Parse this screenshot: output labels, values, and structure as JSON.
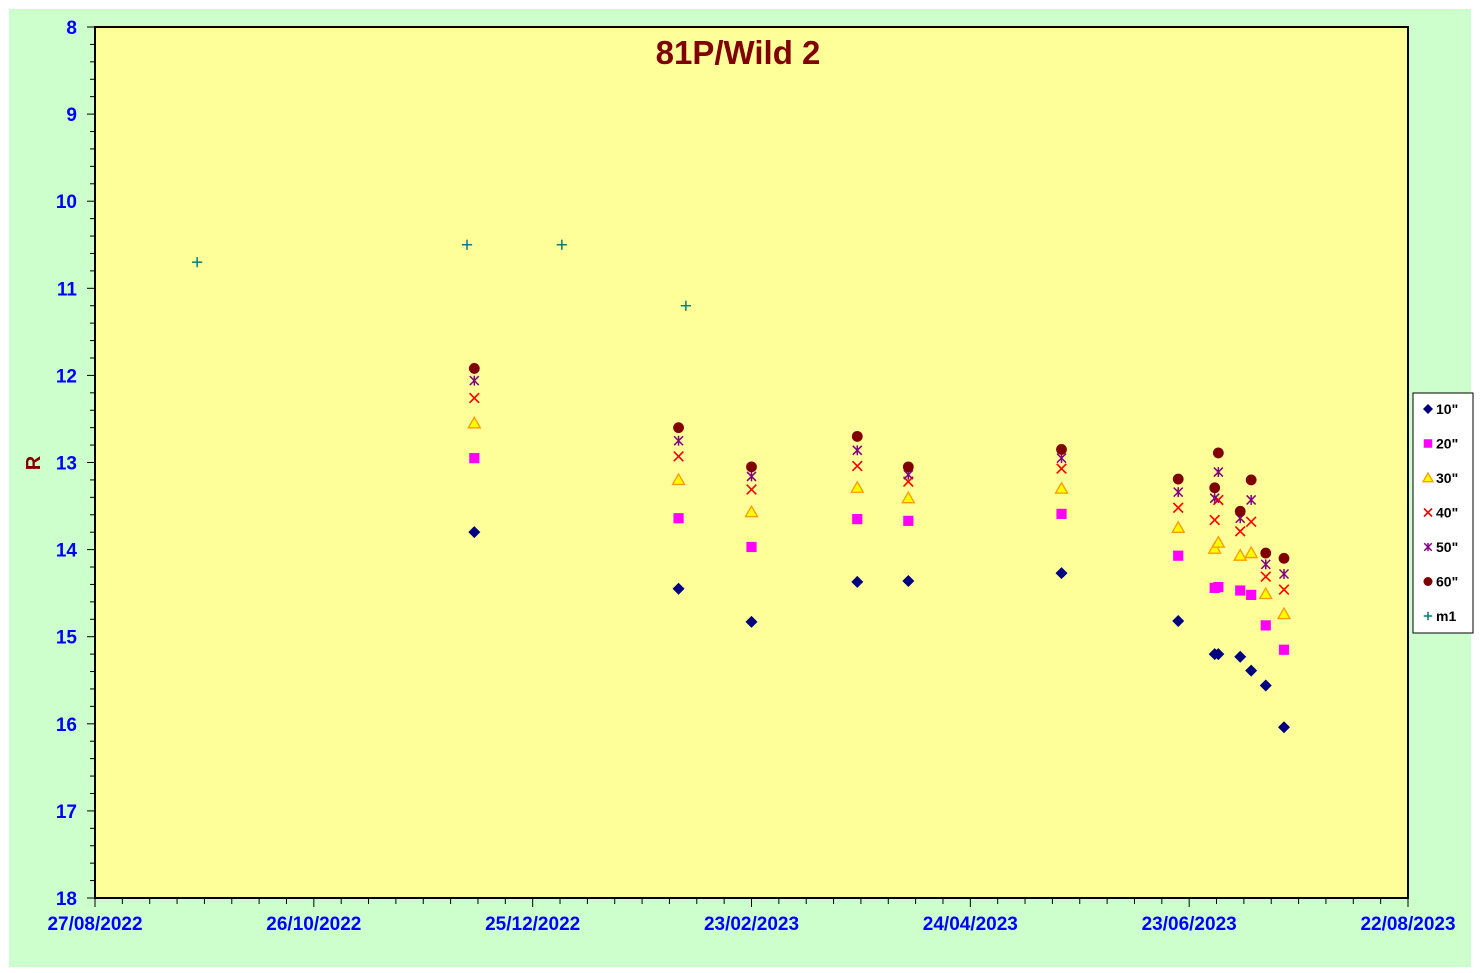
{
  "chart_data": {
    "type": "scatter",
    "title": "81P/Wild 2",
    "ylabel": "R",
    "xlabel": "",
    "x_ticks": [
      "27/08/2022",
      "26/10/2022",
      "25/12/2022",
      "23/02/2023",
      "24/04/2023",
      "23/06/2023",
      "22/08/2023"
    ],
    "xlim": [
      "2022-08-27",
      "2023-08-22"
    ],
    "ylim": [
      8,
      18
    ],
    "y_ticks": [
      8,
      9,
      10,
      11,
      12,
      13,
      14,
      15,
      16,
      17,
      18
    ],
    "y_inverted": true,
    "legend_position": "right",
    "grid": false,
    "colors": {
      "plot_background": "#ffff99",
      "frame_background": "#ccffcc",
      "title": "#800000",
      "ylabel": "#800000",
      "tick_labels": "#0000ff"
    },
    "series": [
      {
        "name": "10\"",
        "marker": "diamond",
        "color": "#000080",
        "points": [
          [
            "2022-12-09",
            13.8
          ],
          [
            "2023-02-03",
            14.45
          ],
          [
            "2023-02-23",
            14.83
          ],
          [
            "2023-03-24",
            14.37
          ],
          [
            "2023-04-07",
            14.36
          ],
          [
            "2023-05-19",
            14.27
          ],
          [
            "2023-06-20",
            14.82
          ],
          [
            "2023-06-30",
            15.2
          ],
          [
            "2023-07-01",
            15.2
          ],
          [
            "2023-07-07",
            15.23
          ],
          [
            "2023-07-10",
            15.39
          ],
          [
            "2023-07-14",
            15.56
          ],
          [
            "2023-07-19",
            16.04
          ]
        ]
      },
      {
        "name": "20\"",
        "marker": "square",
        "color": "#ff00ff",
        "points": [
          [
            "2022-12-09",
            12.95
          ],
          [
            "2023-02-03",
            13.64
          ],
          [
            "2023-02-23",
            13.97
          ],
          [
            "2023-03-24",
            13.65
          ],
          [
            "2023-04-07",
            13.67
          ],
          [
            "2023-05-19",
            13.59
          ],
          [
            "2023-06-20",
            14.07
          ],
          [
            "2023-06-30",
            14.44
          ],
          [
            "2023-07-01",
            14.43
          ],
          [
            "2023-07-07",
            14.47
          ],
          [
            "2023-07-10",
            14.52
          ],
          [
            "2023-07-14",
            14.87
          ],
          [
            "2023-07-19",
            15.15
          ]
        ]
      },
      {
        "name": "30\"",
        "marker": "triangle",
        "color": "#ff9900",
        "points": [
          [
            "2022-12-09",
            12.55
          ],
          [
            "2023-02-03",
            13.2
          ],
          [
            "2023-02-23",
            13.57
          ],
          [
            "2023-03-24",
            13.29
          ],
          [
            "2023-04-07",
            13.41
          ],
          [
            "2023-05-19",
            13.3
          ],
          [
            "2023-06-20",
            13.75
          ],
          [
            "2023-06-30",
            13.99
          ],
          [
            "2023-07-01",
            13.92
          ],
          [
            "2023-07-07",
            14.07
          ],
          [
            "2023-07-10",
            14.04
          ],
          [
            "2023-07-14",
            14.51
          ],
          [
            "2023-07-19",
            14.74
          ]
        ]
      },
      {
        "name": "40\"",
        "marker": "x",
        "color": "#ff0000",
        "points": [
          [
            "2022-12-09",
            12.26
          ],
          [
            "2023-02-03",
            12.93
          ],
          [
            "2023-02-23",
            13.31
          ],
          [
            "2023-03-24",
            13.04
          ],
          [
            "2023-04-07",
            13.22
          ],
          [
            "2023-05-19",
            13.07
          ],
          [
            "2023-06-20",
            13.52
          ],
          [
            "2023-06-30",
            13.66
          ],
          [
            "2023-07-01",
            13.43
          ],
          [
            "2023-07-07",
            13.79
          ],
          [
            "2023-07-10",
            13.68
          ],
          [
            "2023-07-14",
            14.31
          ],
          [
            "2023-07-19",
            14.46
          ]
        ]
      },
      {
        "name": "50\"",
        "marker": "star",
        "color": "#800080",
        "points": [
          [
            "2022-12-09",
            12.06
          ],
          [
            "2023-02-03",
            12.75
          ],
          [
            "2023-02-23",
            13.16
          ],
          [
            "2023-03-24",
            12.86
          ],
          [
            "2023-04-07",
            13.14
          ],
          [
            "2023-05-19",
            12.95
          ],
          [
            "2023-06-20",
            13.34
          ],
          [
            "2023-06-30",
            13.41
          ],
          [
            "2023-07-01",
            13.11
          ],
          [
            "2023-07-07",
            13.64
          ],
          [
            "2023-07-10",
            13.43
          ],
          [
            "2023-07-14",
            14.17
          ],
          [
            "2023-07-19",
            14.28
          ]
        ]
      },
      {
        "name": "60\"",
        "marker": "circle",
        "color": "#800000",
        "points": [
          [
            "2022-12-09",
            11.92
          ],
          [
            "2023-02-03",
            12.6
          ],
          [
            "2023-02-23",
            13.05
          ],
          [
            "2023-03-24",
            12.7
          ],
          [
            "2023-04-07",
            13.05
          ],
          [
            "2023-05-19",
            12.85
          ],
          [
            "2023-06-20",
            13.19
          ],
          [
            "2023-06-30",
            13.29
          ],
          [
            "2023-07-01",
            12.89
          ],
          [
            "2023-07-07",
            13.56
          ],
          [
            "2023-07-10",
            13.2
          ],
          [
            "2023-07-14",
            14.04
          ],
          [
            "2023-07-19",
            14.1
          ]
        ]
      },
      {
        "name": "m1",
        "marker": "plus",
        "color": "#008080",
        "points": [
          [
            "2022-09-24",
            10.7
          ],
          [
            "2022-12-07",
            10.5
          ],
          [
            "2023-01-02",
            10.5
          ],
          [
            "2023-02-05",
            11.2
          ]
        ]
      }
    ]
  }
}
